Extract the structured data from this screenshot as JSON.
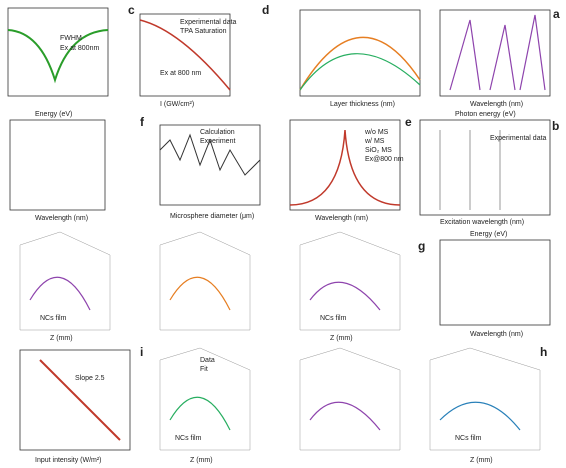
{
  "panels": [
    {
      "label": "c",
      "texts": [
        "Experimental data",
        "TPA Saturation",
        "Ex at 800 nm",
        "I (GW/cm²)"
      ]
    },
    {
      "label": "d",
      "texts": [
        "Layer thickness (nm)"
      ]
    },
    {
      "label": "a",
      "texts": [
        "Wavelength (nm)"
      ]
    },
    {
      "label": "f",
      "texts": [
        "Calculation",
        "Experiment",
        "Microsphere diameter (μm)"
      ]
    },
    {
      "label": "e",
      "texts": [
        "w/o MS",
        "w/ MS",
        "SiO₂ MS",
        "Ex@800 nm",
        "Wavelength (nm)"
      ]
    },
    {
      "label": "b",
      "texts": [
        "Experimental data",
        "Excitation wavelength (nm)",
        "Photon energy (eV)"
      ]
    },
    {
      "label": "g",
      "texts": [
        "NCs film",
        "Z (mm)",
        "Energy (eV)",
        "Wavelength (nm)"
      ]
    },
    {
      "label": "i",
      "texts": [
        "Data",
        "Fit",
        "NCs film",
        "Z (mm)"
      ]
    },
    {
      "label": "h",
      "texts": [
        "NCs film",
        "Z (mm)"
      ]
    }
  ],
  "extra": [
    "FWHM",
    "Ex at 800nm",
    "Slope 2.5",
    "Input intensity (W/m²)",
    "Energy (eV)",
    "Wavelength (nm)",
    "NCs film",
    "Z (mm)"
  ]
}
